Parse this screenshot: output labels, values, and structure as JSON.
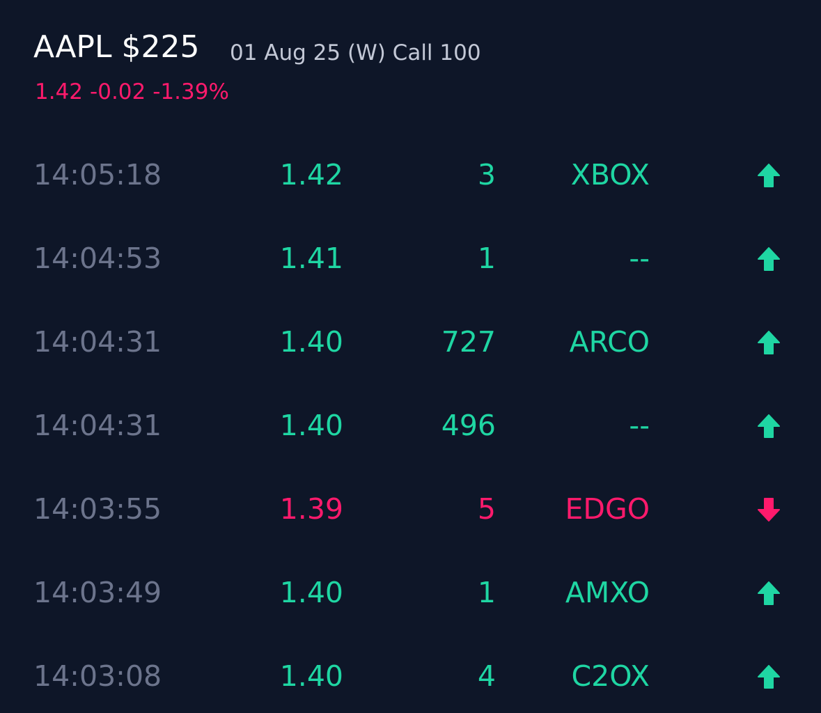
{
  "header": {
    "symbol": "AAPL $225",
    "contract": "01 Aug 25 (W) Call 100",
    "last": "1.42",
    "change": "-0.02",
    "change_pct": "-1.39%",
    "direction": "down"
  },
  "trades": [
    {
      "time": "14:05:18",
      "price": "1.42",
      "size": "3",
      "exchange": "XBOX",
      "direction": "up"
    },
    {
      "time": "14:04:53",
      "price": "1.41",
      "size": "1",
      "exchange": "--",
      "direction": "up"
    },
    {
      "time": "14:04:31",
      "price": "1.40",
      "size": "727",
      "exchange": "ARCO",
      "direction": "up"
    },
    {
      "time": "14:04:31",
      "price": "1.40",
      "size": "496",
      "exchange": "--",
      "direction": "up"
    },
    {
      "time": "14:03:55",
      "price": "1.39",
      "size": "5",
      "exchange": "EDGO",
      "direction": "down"
    },
    {
      "time": "14:03:49",
      "price": "1.40",
      "size": "1",
      "exchange": "AMXO",
      "direction": "up"
    },
    {
      "time": "14:03:08",
      "price": "1.40",
      "size": "4",
      "exchange": "C2OX",
      "direction": "up"
    }
  ]
}
